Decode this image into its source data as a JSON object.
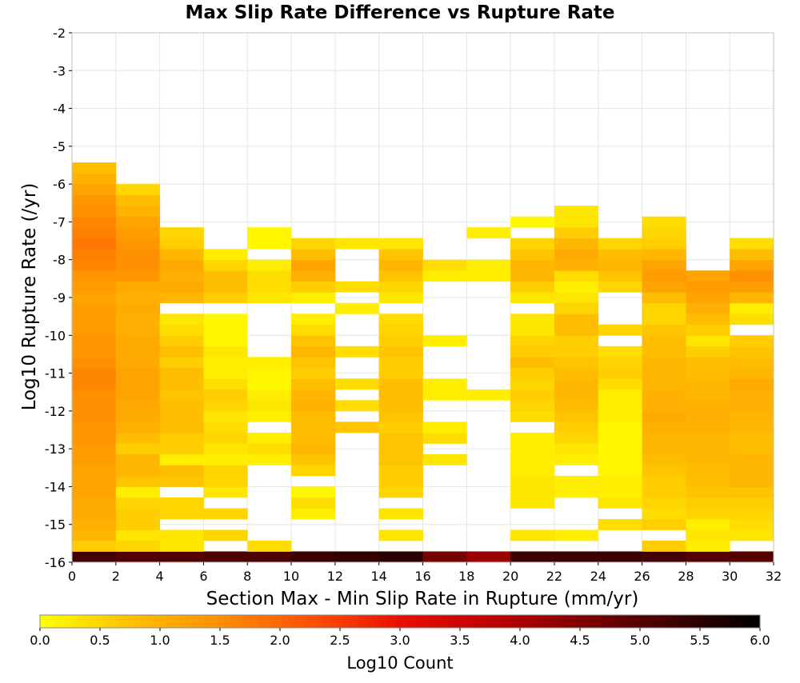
{
  "chart_data": {
    "type": "heatmap",
    "title": "Max Slip Rate Difference vs Rupture Rate",
    "xlabel": "Section Max - Min Slip Rate in Rupture (mm/yr)",
    "ylabel": "Log10 Rupture Rate (/yr)",
    "xlim": [
      0,
      32
    ],
    "ylim": [
      -16,
      -2
    ],
    "x_ticks": [
      0,
      2,
      4,
      6,
      8,
      10,
      12,
      14,
      16,
      18,
      20,
      22,
      24,
      26,
      28,
      30,
      32
    ],
    "y_ticks": [
      -2,
      -3,
      -4,
      -5,
      -6,
      -7,
      -8,
      -9,
      -10,
      -11,
      -12,
      -13,
      -14,
      -15,
      -16
    ],
    "x_bin_width": 2,
    "y_bin_height": 0.2857,
    "y_bin_start": -16,
    "grid": true,
    "colorbar": {
      "label": "Log10 Count",
      "min": 0.0,
      "max": 6.0,
      "ticks": [
        "0.0",
        "0.5",
        "1.0",
        "1.5",
        "2.0",
        "2.5",
        "3.0",
        "3.5",
        "4.0",
        "4.5",
        "5.0",
        "5.5",
        "6.0"
      ],
      "colors": [
        "#ffff00",
        "#ffc000",
        "#ff9000",
        "#ff5000",
        "#e81000",
        "#c00000",
        "#800000",
        "#400000",
        "#000000"
      ]
    },
    "columns": [
      {
        "x_range": [
          0,
          2
        ],
        "values_from_bottom": [
          5.2,
          0.6,
          0.9,
          1.0,
          1.1,
          1.1,
          1.2,
          1.2,
          1.2,
          1.3,
          1.3,
          1.4,
          1.4,
          1.5,
          1.5,
          1.5,
          1.6,
          1.6,
          1.5,
          1.4,
          1.4,
          1.3,
          1.3,
          1.3,
          1.2,
          1.3,
          1.4,
          1.6,
          1.7,
          1.8,
          1.7,
          1.6,
          1.5,
          1.4,
          1.2,
          1.0,
          0.8
        ]
      },
      {
        "x_range": [
          2,
          4
        ],
        "values_from_bottom": [
          5.0,
          0.5,
          0.3,
          0.6,
          0.6,
          0.5,
          0.2,
          0.7,
          0.9,
          0.9,
          0.6,
          0.8,
          1.0,
          1.1,
          1.1,
          1.2,
          1.2,
          1.2,
          1.1,
          1.1,
          1.1,
          1.0,
          1.0,
          1.1,
          1.0,
          1.1,
          1.4,
          1.5,
          1.5,
          1.4,
          1.3,
          1.2,
          1.0,
          0.8,
          0.5
        ]
      },
      {
        "x_range": [
          4,
          6
        ],
        "values_from_bottom": [
          5.0,
          0.3,
          0.3,
          null,
          0.5,
          0.5,
          null,
          0.7,
          0.8,
          0.2,
          0.6,
          0.6,
          0.8,
          0.8,
          0.8,
          0.7,
          0.8,
          0.8,
          0.6,
          0.8,
          0.6,
          0.4,
          0.3,
          null,
          0.9,
          1.1,
          1.0,
          1.1,
          0.9,
          0.6,
          0.5
        ]
      },
      {
        "x_range": [
          6,
          8
        ],
        "values_from_bottom": [
          5.1,
          null,
          0.5,
          null,
          0.5,
          null,
          0.3,
          0.5,
          0.5,
          0.2,
          0.3,
          0.5,
          0.4,
          0.3,
          0.5,
          0.6,
          0.4,
          0.2,
          0.2,
          0.3,
          0.1,
          0.1,
          0.1,
          null,
          0.6,
          0.8,
          0.8,
          0.5,
          0.2
        ]
      },
      {
        "x_range": [
          8,
          10
        ],
        "values_from_bottom": [
          5.1,
          0.4,
          null,
          null,
          null,
          null,
          null,
          null,
          null,
          0.2,
          0.4,
          0.2,
          null,
          0.2,
          0.3,
          0.2,
          0.1,
          0.1,
          0.2,
          null,
          null,
          null,
          null,
          null,
          0.3,
          0.4,
          0.4,
          0.2,
          null,
          0.1,
          0.1
        ]
      },
      {
        "x_range": [
          10,
          12
        ],
        "values_from_bottom": [
          5.3,
          null,
          null,
          null,
          0.2,
          0.4,
          0.1,
          null,
          0.5,
          0.7,
          0.9,
          0.8,
          0.8,
          0.8,
          1.0,
          0.9,
          0.8,
          0.6,
          0.7,
          0.9,
          0.7,
          0.4,
          0.2,
          null,
          0.2,
          0.6,
          1.0,
          1.2,
          0.8,
          0.5
        ]
      },
      {
        "x_range": [
          12,
          14
        ],
        "values_from_bottom": [
          5.4,
          null,
          null,
          null,
          null,
          null,
          null,
          null,
          null,
          null,
          null,
          null,
          0.7,
          null,
          0.4,
          null,
          0.4,
          null,
          null,
          0.4,
          null,
          null,
          null,
          0.2,
          null,
          0.4,
          null,
          null,
          null,
          0.3
        ]
      },
      {
        "x_range": [
          14,
          16
        ],
        "values_from_bottom": [
          5.5,
          null,
          0.3,
          null,
          0.3,
          null,
          0.5,
          0.6,
          0.6,
          0.7,
          0.7,
          0.7,
          0.6,
          0.7,
          0.8,
          0.8,
          0.8,
          0.6,
          0.6,
          0.7,
          0.6,
          0.5,
          0.4,
          null,
          0.3,
          0.5,
          0.7,
          0.9,
          0.7,
          0.3
        ]
      },
      {
        "x_range": [
          16,
          18
        ],
        "values_from_bottom": [
          4.6,
          null,
          null,
          null,
          null,
          null,
          null,
          null,
          null,
          0.3,
          null,
          0.4,
          0.2,
          null,
          null,
          0.2,
          0.2,
          null,
          null,
          null,
          0.2,
          null,
          null,
          null,
          null,
          null,
          0.2,
          0.4
        ]
      },
      {
        "x_range": [
          18,
          20
        ],
        "values_from_bottom": [
          4.2,
          null,
          null,
          null,
          null,
          null,
          null,
          null,
          null,
          null,
          null,
          null,
          null,
          null,
          null,
          0.2,
          null,
          null,
          null,
          null,
          null,
          null,
          null,
          null,
          null,
          null,
          0.2,
          0.2,
          null,
          null,
          0.2
        ]
      },
      {
        "x_range": [
          20,
          22
        ],
        "values_from_bottom": [
          5.3,
          null,
          0.3,
          null,
          null,
          0.3,
          0.3,
          0.3,
          0.2,
          0.2,
          0.2,
          0.2,
          null,
          0.4,
          0.5,
          0.6,
          0.5,
          0.6,
          0.8,
          0.6,
          0.5,
          0.3,
          0.3,
          null,
          0.3,
          0.6,
          0.9,
          0.9,
          0.7,
          0.5,
          null,
          0.1
        ]
      },
      {
        "x_range": [
          22,
          24
        ],
        "values_from_bottom": [
          5.3,
          null,
          0.2,
          null,
          null,
          null,
          0.2,
          0.2,
          null,
          0.2,
          0.3,
          0.5,
          0.6,
          0.7,
          0.8,
          0.9,
          0.9,
          0.8,
          0.7,
          0.6,
          0.6,
          0.8,
          0.8,
          0.5,
          0.3,
          0.2,
          0.4,
          1.0,
          1.1,
          0.9,
          0.6,
          0.3,
          0.3
        ]
      },
      {
        "x_range": [
          24,
          26
        ],
        "values_from_bottom": [
          5.3,
          null,
          null,
          0.4,
          null,
          0.3,
          0.2,
          0.2,
          0.1,
          0.1,
          0.1,
          0.1,
          0.1,
          0.2,
          0.2,
          0.2,
          0.4,
          0.6,
          0.5,
          0.4,
          null,
          0.5,
          null,
          null,
          null,
          0.5,
          0.7,
          0.9,
          0.8,
          0.5
        ]
      },
      {
        "x_range": [
          26,
          28
        ],
        "values_from_bottom": [
          5.2,
          0.6,
          null,
          0.6,
          0.4,
          0.5,
          0.6,
          0.6,
          0.7,
          0.8,
          0.9,
          0.9,
          1.0,
          1.1,
          1.0,
          1.0,
          0.9,
          0.9,
          0.9,
          0.8,
          0.8,
          0.7,
          0.5,
          0.5,
          0.8,
          1.2,
          1.3,
          1.2,
          0.9,
          0.6,
          0.5,
          0.4
        ]
      },
      {
        "x_range": [
          28,
          30
        ],
        "values_from_bottom": [
          5.0,
          0.2,
          0.3,
          0.2,
          0.5,
          0.6,
          0.7,
          0.8,
          0.8,
          0.9,
          0.9,
          0.9,
          1.0,
          1.0,
          1.0,
          0.9,
          0.9,
          0.8,
          0.8,
          0.6,
          0.3,
          0.6,
          0.8,
          1.0,
          1.2,
          1.3,
          1.2
        ]
      },
      {
        "x_range": [
          30,
          32
        ],
        "values_from_bottom": [
          5.0,
          null,
          0.3,
          0.4,
          0.5,
          0.6,
          0.7,
          0.9,
          0.9,
          0.9,
          0.8,
          0.8,
          0.9,
          0.9,
          1.0,
          1.0,
          1.1,
          0.9,
          0.8,
          0.7,
          0.6,
          null,
          0.4,
          0.2,
          0.9,
          1.3,
          1.5,
          1.2,
          0.8,
          0.4
        ]
      }
    ]
  }
}
